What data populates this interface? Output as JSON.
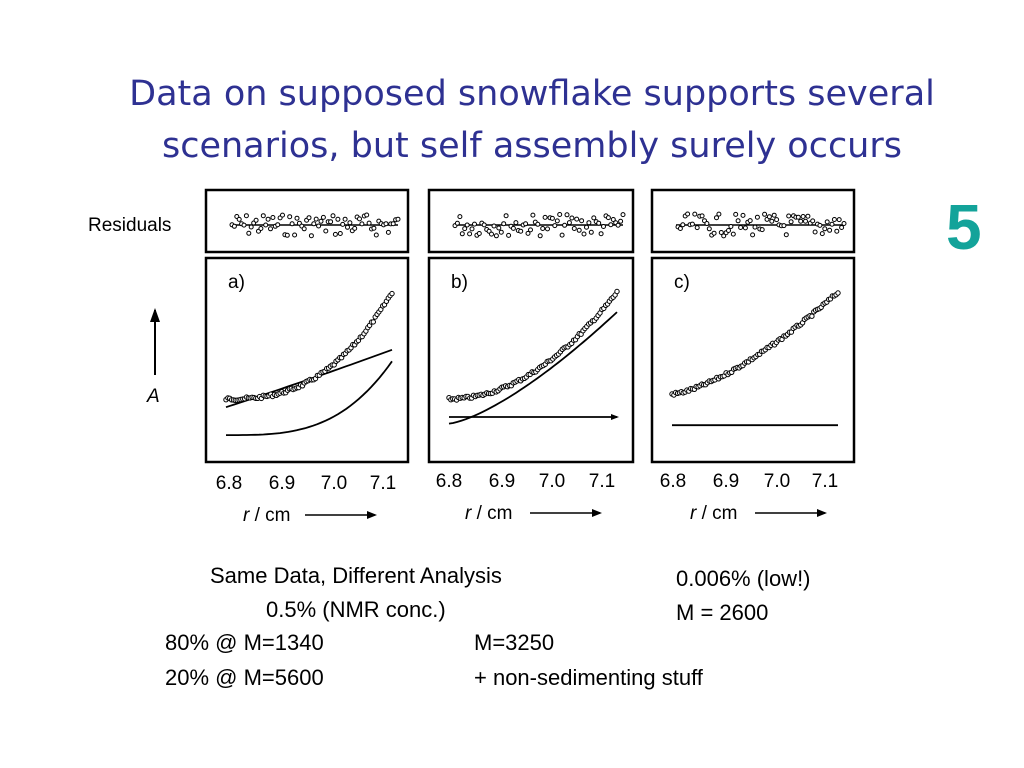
{
  "slide": {
    "title_line1": "Data on supposed snowflake supports several",
    "title_line2": "scenarios, but self assembly surely occurs",
    "number": "5",
    "colors": {
      "title": "#2e3192",
      "number": "#13a39a"
    }
  },
  "chart_data": [
    {
      "type": "scatter",
      "panel_label": "a)",
      "residuals_label": "Residuals",
      "ylabel": "A",
      "xlabel": "r / cm",
      "x_ticks": [
        "6.8",
        "6.9",
        "7.0",
        "7.1"
      ],
      "xlim": [
        6.78,
        7.13
      ],
      "ylim": [
        0,
        1
      ],
      "fit_curves": [
        "fit",
        "component 1",
        "component 2"
      ]
    },
    {
      "type": "scatter",
      "panel_label": "b)",
      "xlabel": "r / cm",
      "x_ticks": [
        "6.8",
        "6.9",
        "7.0",
        "7.1"
      ],
      "xlim": [
        6.78,
        7.13
      ],
      "ylim": [
        0,
        1
      ],
      "fit_curves": [
        "fit",
        "sedimenting component",
        "baseline"
      ]
    },
    {
      "type": "scatter",
      "panel_label": "c)",
      "xlabel": "r / cm",
      "x_ticks": [
        "6.8",
        "6.9",
        "7.0",
        "7.1"
      ],
      "xlim": [
        6.78,
        7.13
      ],
      "ylim": [
        0,
        1
      ],
      "fit_curves": [
        "fit",
        "baseline"
      ]
    }
  ],
  "captions": {
    "same_data": "Same Data, Different Analysis",
    "nmr_conc": "0.5% (NMR conc.)",
    "a_line1": "80% @ M=1340",
    "a_line2": "20% @ M=5600",
    "b_line1": "M=3250",
    "b_line2": "+ non-sedimenting stuff",
    "c_line1": "0.006% (low!)",
    "c_line2": "M = 2600"
  }
}
